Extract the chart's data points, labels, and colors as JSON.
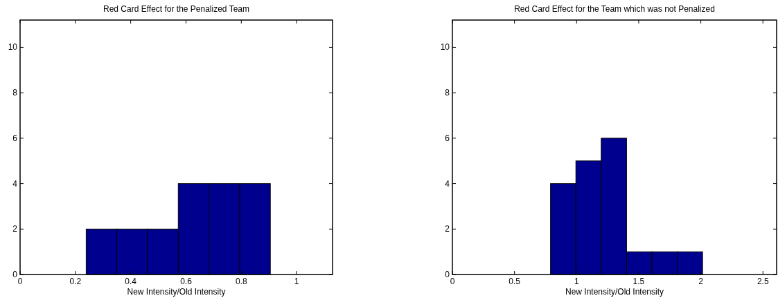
{
  "chart_data": [
    {
      "type": "histogram",
      "title": "Red Card Effect for the Penalized Team",
      "xlabel": "New Intensity/Old Intensity",
      "bins": [
        0.239,
        0.35,
        0.461,
        0.572,
        0.683,
        0.794,
        0.905
      ],
      "values": [
        2,
        2,
        2,
        4,
        4,
        4
      ],
      "color": "#00008f",
      "xlim": [
        0,
        1.13
      ],
      "xticks": [
        0,
        0.2,
        0.4,
        0.6,
        0.8,
        1
      ],
      "ylim": [
        0,
        11.2
      ],
      "yticks": [
        0,
        2,
        4,
        6,
        8,
        10
      ],
      "grid": false
    },
    {
      "type": "histogram",
      "title": "Red Card Effect for the Team which was not Penalized",
      "xlabel": "New Intensity/Old Intensity",
      "bins": [
        0.79,
        0.994,
        1.198,
        1.402,
        1.606,
        1.81,
        2.014
      ],
      "values": [
        4,
        5,
        6,
        1,
        1,
        1
      ],
      "color": "#00008f",
      "xlim": [
        0,
        2.61
      ],
      "xticks": [
        0,
        0.5,
        1,
        1.5,
        2,
        2.5
      ],
      "ylim": [
        0,
        11.2
      ],
      "yticks": [
        0,
        2,
        4,
        6,
        8,
        10
      ],
      "grid": false
    }
  ]
}
